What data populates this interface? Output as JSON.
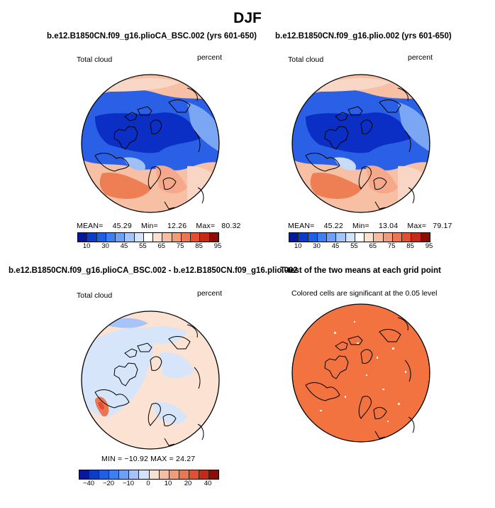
{
  "title": "DJF",
  "panels": {
    "tl": {
      "heading": "b.e12.B1850CN.f09_g16.plioCA_BSC.002 (yrs 601-650)",
      "left": "Total cloud",
      "right": "percent",
      "stats": {
        "mean_label": "MEAN=",
        "mean": "45.29",
        "min_label": "Min=",
        "min": "12.26",
        "max_label": "Max=",
        "max": "80.32"
      }
    },
    "tr": {
      "heading": "b.e12.B1850CN.f09_g16.plio.002 (yrs 601-650)",
      "left": "Total cloud",
      "right": "percent",
      "stats": {
        "mean_label": "MEAN=",
        "mean": "45.22",
        "min_label": "Min=",
        "min": "13.04",
        "max_label": "Max=",
        "max": "79.17"
      }
    },
    "bl": {
      "heading": "b.e12.B1850CN.f09_g16.plioCA_BSC.002 - b.e12.B1850CN.f09_g16.plio.002",
      "left": "Total cloud",
      "right": "percent",
      "stats_text": "MIN = −10.92  MAX =  24.27"
    },
    "br": {
      "heading": "T-test of the two means at each grid point",
      "note": "Colored cells are significant at the 0.05 level"
    }
  },
  "colorbar_abs": {
    "labels": [
      "10",
      "30",
      "45",
      "55",
      "65",
      "75",
      "85",
      "95"
    ],
    "colors": [
      "#08189c",
      "#0c3dc8",
      "#1f5fe6",
      "#3d7ef2",
      "#6ea0f5",
      "#a6c4f7",
      "#d6e4fa",
      "#ffffff",
      "#fbe1d2",
      "#f7bd9f",
      "#f29b78",
      "#ec7552",
      "#e34f31",
      "#c42a17",
      "#8c0d05"
    ]
  },
  "colorbar_diff": {
    "labels": [
      "−40",
      "−20",
      "−10",
      "0",
      "10",
      "20",
      "40"
    ],
    "colors": [
      "#08189c",
      "#0c3dc8",
      "#1f5fe6",
      "#3d7ef2",
      "#6ea0f5",
      "#a6c4f7",
      "#d6e4fa",
      "#fbe1d2",
      "#f7bd9f",
      "#f29b78",
      "#ec7552",
      "#e34f31",
      "#c42a17",
      "#8c0d05"
    ]
  },
  "colors": {
    "ttest_fill": "#f2733f",
    "diff_base": "#fbe2d3",
    "diff_blue": "#d6e5fa",
    "cloud_blue": "#2a64e8",
    "cloud_red": "#ef8660"
  }
}
